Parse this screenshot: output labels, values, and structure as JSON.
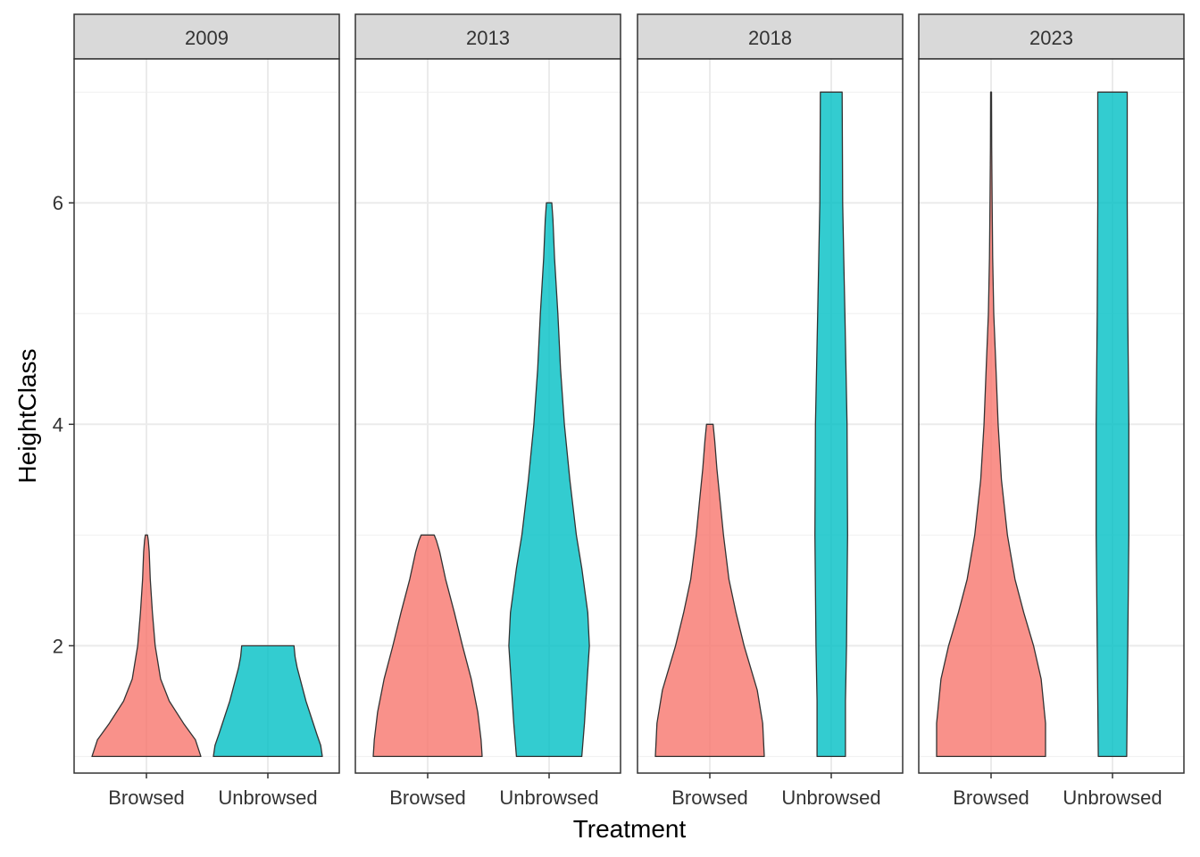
{
  "chart_data": {
    "type": "violin",
    "xlabel": "Treatment",
    "ylabel": "HeightClass",
    "ylim": [
      0.85,
      7.3
    ],
    "yticks": [
      2,
      4,
      6
    ],
    "grid": true,
    "legend": "none",
    "categories": [
      "Browsed",
      "Unbrowsed"
    ],
    "colors": {
      "Browsed": "#F8766D",
      "Unbrowsed": "#00BFC4"
    },
    "panels": [
      {
        "label": "2009",
        "violins": [
          {
            "category": "Browsed",
            "min": 1,
            "max": 3,
            "profile": [
              [
                1.0,
                1.0
              ],
              [
                1.15,
                0.9
              ],
              [
                1.3,
                0.68
              ],
              [
                1.5,
                0.42
              ],
              [
                1.7,
                0.26
              ],
              [
                2.0,
                0.16
              ],
              [
                2.3,
                0.11
              ],
              [
                2.6,
                0.07
              ],
              [
                2.85,
                0.05
              ],
              [
                2.95,
                0.035
              ],
              [
                3.0,
                0.02
              ]
            ]
          },
          {
            "category": "Unbrowsed",
            "min": 1,
            "max": 2,
            "profile": [
              [
                1.0,
                1.0
              ],
              [
                1.1,
                0.97
              ],
              [
                1.2,
                0.9
              ],
              [
                1.35,
                0.8
              ],
              [
                1.5,
                0.7
              ],
              [
                1.65,
                0.62
              ],
              [
                1.8,
                0.54
              ],
              [
                1.9,
                0.5
              ],
              [
                2.0,
                0.48
              ]
            ]
          }
        ]
      },
      {
        "label": "2013",
        "violins": [
          {
            "category": "Browsed",
            "min": 1,
            "max": 3,
            "profile": [
              [
                1.0,
                1.0
              ],
              [
                1.15,
                0.98
              ],
              [
                1.4,
                0.92
              ],
              [
                1.7,
                0.8
              ],
              [
                2.0,
                0.64
              ],
              [
                2.3,
                0.49
              ],
              [
                2.6,
                0.33
              ],
              [
                2.85,
                0.22
              ],
              [
                2.95,
                0.16
              ],
              [
                3.0,
                0.12
              ]
            ]
          },
          {
            "category": "Unbrowsed",
            "min": 1,
            "max": 6,
            "profile": [
              [
                1.0,
                0.6
              ],
              [
                1.3,
                0.65
              ],
              [
                1.7,
                0.7
              ],
              [
                2.0,
                0.74
              ],
              [
                2.3,
                0.71
              ],
              [
                2.7,
                0.6
              ],
              [
                3.0,
                0.5
              ],
              [
                3.5,
                0.38
              ],
              [
                4.0,
                0.28
              ],
              [
                4.5,
                0.21
              ],
              [
                5.0,
                0.16
              ],
              [
                5.5,
                0.1
              ],
              [
                5.85,
                0.07
              ],
              [
                6.0,
                0.05
              ]
            ]
          }
        ]
      },
      {
        "label": "2018",
        "violins": [
          {
            "category": "Browsed",
            "min": 1,
            "max": 4,
            "profile": [
              [
                1.0,
                1.0
              ],
              [
                1.3,
                0.97
              ],
              [
                1.6,
                0.87
              ],
              [
                2.0,
                0.63
              ],
              [
                2.3,
                0.48
              ],
              [
                2.6,
                0.35
              ],
              [
                3.0,
                0.25
              ],
              [
                3.3,
                0.19
              ],
              [
                3.6,
                0.13
              ],
              [
                3.85,
                0.09
              ],
              [
                4.0,
                0.06
              ]
            ]
          },
          {
            "category": "Unbrowsed",
            "min": 1,
            "max": 7,
            "profile": [
              [
                1.0,
                0.26
              ],
              [
                1.5,
                0.26
              ],
              [
                2.0,
                0.28
              ],
              [
                3.0,
                0.3
              ],
              [
                4.0,
                0.29
              ],
              [
                5.0,
                0.25
              ],
              [
                5.5,
                0.23
              ],
              [
                6.0,
                0.21
              ],
              [
                7.0,
                0.2
              ]
            ]
          }
        ]
      },
      {
        "label": "2023",
        "violins": [
          {
            "category": "Browsed",
            "min": 1,
            "max": 7,
            "profile": [
              [
                1.0,
                1.0
              ],
              [
                1.3,
                1.0
              ],
              [
                1.7,
                0.92
              ],
              [
                2.0,
                0.78
              ],
              [
                2.3,
                0.6
              ],
              [
                2.6,
                0.44
              ],
              [
                3.0,
                0.3
              ],
              [
                3.5,
                0.19
              ],
              [
                4.0,
                0.13
              ],
              [
                4.5,
                0.09
              ],
              [
                5.0,
                0.05
              ],
              [
                5.5,
                0.03
              ],
              [
                6.0,
                0.02
              ],
              [
                6.5,
                0.012
              ],
              [
                7.0,
                0.008
              ]
            ]
          },
          {
            "category": "Unbrowsed",
            "min": 1,
            "max": 7,
            "profile": [
              [
                1.0,
                0.26
              ],
              [
                1.5,
                0.27
              ],
              [
                2.0,
                0.28
              ],
              [
                3.0,
                0.3
              ],
              [
                4.0,
                0.3
              ],
              [
                5.0,
                0.28
              ],
              [
                6.0,
                0.27
              ],
              [
                7.0,
                0.27
              ]
            ]
          }
        ]
      }
    ]
  }
}
